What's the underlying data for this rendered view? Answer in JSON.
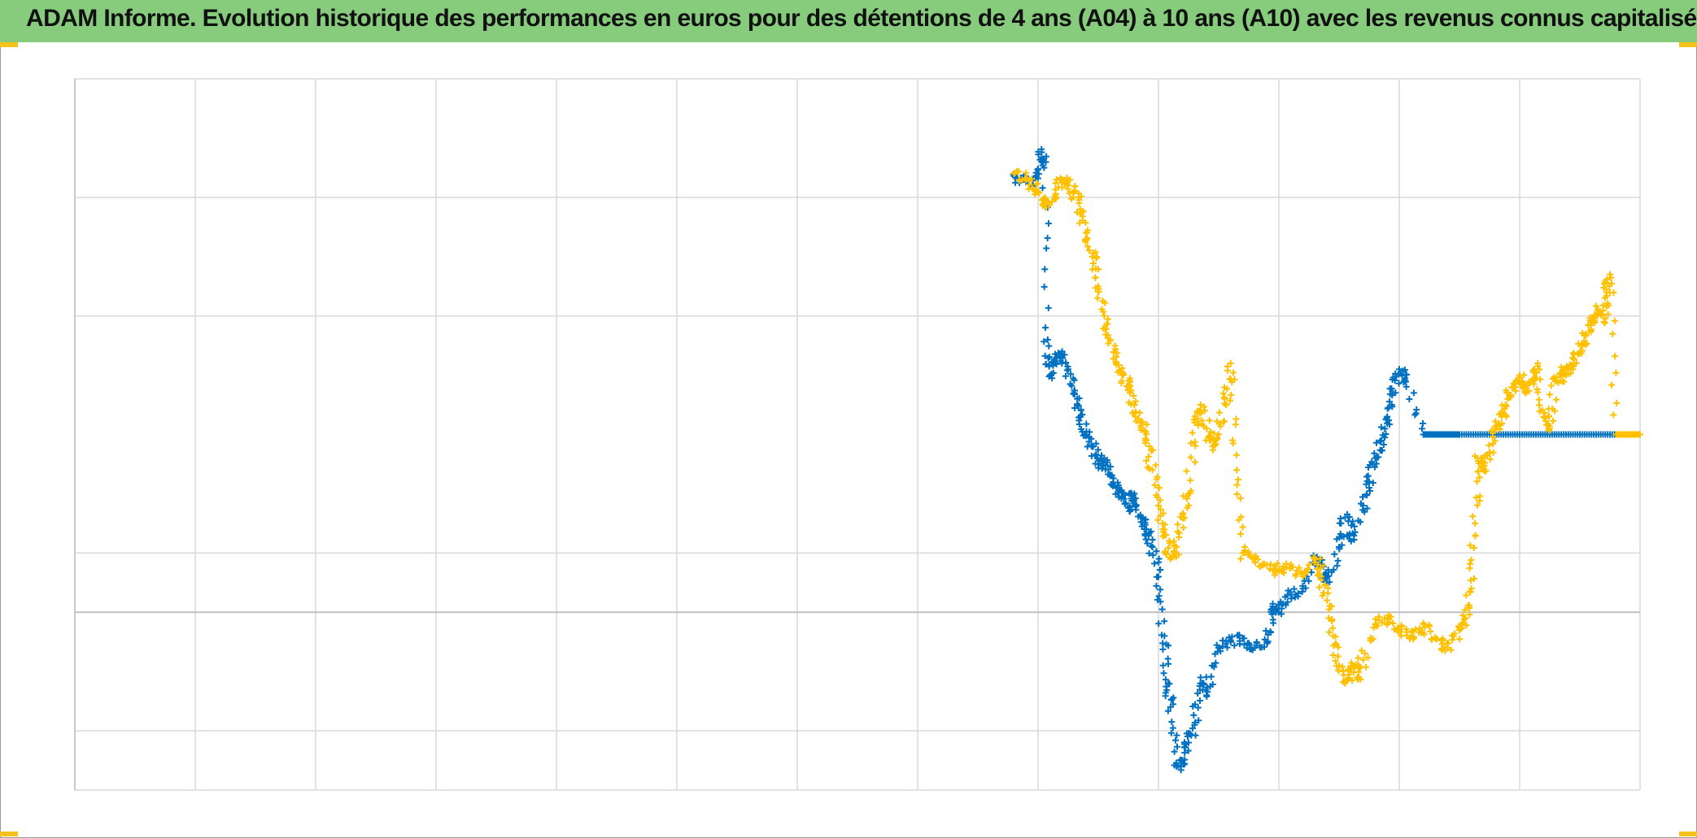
{
  "title": "ADAM Informe. Evolution historique des performances en euros pour des détentions de 4 ans (A04) à 10 ans (A10) avec les revenus connus capitalisés",
  "colors": {
    "header": "#86cc7c",
    "accent": "#f4c21a",
    "grid": "#d9d9d9",
    "zero_line": "#bfbfbf"
  },
  "chart_data": {
    "type": "scatter",
    "title": "ADAM Informe. Evolution historique des performances en euros pour des détentions de 4 ans (A04) à 10 ans (A10) avec les revenus connus capitalisés",
    "xlabel": "",
    "ylabel": "",
    "x_range": [
      0,
      13
    ],
    "y_range": [
      -1.5,
      4.5
    ],
    "x_ticks": [
      0,
      1,
      2,
      3,
      4,
      5,
      6,
      7,
      8,
      9,
      10,
      11,
      12,
      13
    ],
    "y_gridlines": [
      -1.5,
      -1.0,
      0,
      0.5,
      2.5,
      3.5,
      4.5
    ],
    "zero_line": 0,
    "tick_labels_shown": false,
    "legend": "none",
    "marker": "plus",
    "series": [
      {
        "color": "#0070c0",
        "points": [
          [
            7.8,
            3.68
          ],
          [
            7.9,
            3.63
          ],
          [
            8.0,
            3.66
          ],
          [
            8.03,
            3.88
          ],
          [
            8.05,
            3.75
          ],
          [
            8.08,
            2.3
          ],
          [
            8.1,
            2.0
          ],
          [
            8.15,
            2.1
          ],
          [
            8.2,
            2.2
          ],
          [
            8.25,
            2.05
          ],
          [
            8.3,
            1.85
          ],
          [
            8.35,
            1.65
          ],
          [
            8.4,
            1.5
          ],
          [
            8.45,
            1.4
          ],
          [
            8.5,
            1.25
          ],
          [
            8.55,
            1.3
          ],
          [
            8.6,
            1.15
          ],
          [
            8.65,
            1.05
          ],
          [
            8.7,
            0.98
          ],
          [
            8.75,
            0.88
          ],
          [
            8.8,
            1.0
          ],
          [
            8.85,
            0.82
          ],
          [
            8.9,
            0.7
          ],
          [
            8.95,
            0.55
          ],
          [
            9.0,
            0.3
          ],
          [
            9.05,
            -0.2
          ],
          [
            9.08,
            -0.6
          ],
          [
            9.1,
            -0.8
          ],
          [
            9.15,
            -1.3
          ],
          [
            9.2,
            -1.25
          ],
          [
            9.25,
            -1.1
          ],
          [
            9.3,
            -0.95
          ],
          [
            9.35,
            -0.55
          ],
          [
            9.4,
            -0.7
          ],
          [
            9.5,
            -0.3
          ],
          [
            9.6,
            -0.25
          ],
          [
            9.7,
            -0.22
          ],
          [
            9.8,
            -0.3
          ],
          [
            9.9,
            -0.25
          ],
          [
            9.95,
            0.05
          ],
          [
            10.0,
            0.0
          ],
          [
            10.1,
            0.15
          ],
          [
            10.2,
            0.2
          ],
          [
            10.3,
            0.45
          ],
          [
            10.35,
            0.4
          ],
          [
            10.4,
            0.25
          ],
          [
            10.5,
            0.55
          ],
          [
            10.55,
            0.8
          ],
          [
            10.6,
            0.6
          ],
          [
            10.7,
            0.9
          ],
          [
            10.75,
            1.1
          ],
          [
            10.8,
            1.3
          ],
          [
            10.85,
            1.45
          ],
          [
            10.9,
            1.65
          ],
          [
            10.95,
            1.85
          ],
          [
            11.0,
            2.05
          ],
          [
            11.05,
            1.95
          ],
          [
            11.2,
            1.5
          ],
          [
            11.5,
            1.5
          ],
          [
            12.0,
            1.5
          ],
          [
            12.5,
            1.5
          ],
          [
            13.0,
            1.5
          ]
        ]
      },
      {
        "color": "#ffc000",
        "points": [
          [
            7.8,
            3.7
          ],
          [
            7.9,
            3.65
          ],
          [
            8.0,
            3.55
          ],
          [
            8.05,
            3.45
          ],
          [
            8.15,
            3.5
          ],
          [
            8.2,
            3.65
          ],
          [
            8.25,
            3.6
          ],
          [
            8.3,
            3.55
          ],
          [
            8.35,
            3.4
          ],
          [
            8.4,
            3.2
          ],
          [
            8.45,
            3.0
          ],
          [
            8.5,
            2.75
          ],
          [
            8.55,
            2.5
          ],
          [
            8.6,
            2.3
          ],
          [
            8.65,
            2.1
          ],
          [
            8.7,
            2.0
          ],
          [
            8.75,
            1.9
          ],
          [
            8.8,
            1.75
          ],
          [
            8.85,
            1.6
          ],
          [
            8.9,
            1.45
          ],
          [
            8.95,
            1.2
          ],
          [
            9.0,
            0.9
          ],
          [
            9.05,
            0.65
          ],
          [
            9.1,
            0.45
          ],
          [
            9.15,
            0.55
          ],
          [
            9.2,
            0.8
          ],
          [
            9.25,
            1.0
          ],
          [
            9.3,
            1.6
          ],
          [
            9.35,
            1.75
          ],
          [
            9.4,
            1.55
          ],
          [
            9.45,
            1.4
          ],
          [
            9.5,
            1.5
          ],
          [
            9.55,
            1.8
          ],
          [
            9.6,
            2.1
          ],
          [
            9.65,
            1.2
          ],
          [
            9.7,
            0.5
          ],
          [
            9.8,
            0.45
          ],
          [
            9.9,
            0.4
          ],
          [
            10.0,
            0.35
          ],
          [
            10.1,
            0.38
          ],
          [
            10.2,
            0.3
          ],
          [
            10.3,
            0.45
          ],
          [
            10.35,
            0.3
          ],
          [
            10.4,
            0.1
          ],
          [
            10.45,
            -0.2
          ],
          [
            10.5,
            -0.45
          ],
          [
            10.55,
            -0.6
          ],
          [
            10.6,
            -0.45
          ],
          [
            10.65,
            -0.55
          ],
          [
            10.7,
            -0.4
          ],
          [
            10.8,
            -0.1
          ],
          [
            10.9,
            -0.05
          ],
          [
            11.0,
            -0.15
          ],
          [
            11.1,
            -0.2
          ],
          [
            11.2,
            -0.1
          ],
          [
            11.3,
            -0.22
          ],
          [
            11.4,
            -0.3
          ],
          [
            11.5,
            -0.15
          ],
          [
            11.55,
            -0.05
          ],
          [
            11.6,
            0.2
          ],
          [
            11.63,
            0.75
          ],
          [
            11.65,
            1.3
          ],
          [
            11.7,
            1.2
          ],
          [
            11.75,
            1.35
          ],
          [
            11.8,
            1.55
          ],
          [
            11.85,
            1.65
          ],
          [
            11.9,
            1.8
          ],
          [
            11.95,
            1.9
          ],
          [
            12.0,
            2.0
          ],
          [
            12.05,
            1.85
          ],
          [
            12.1,
            1.95
          ],
          [
            12.15,
            2.1
          ],
          [
            12.2,
            1.65
          ],
          [
            12.25,
            1.55
          ],
          [
            12.3,
            1.95
          ],
          [
            12.35,
            2.0
          ],
          [
            12.4,
            2.05
          ],
          [
            12.45,
            2.1
          ],
          [
            12.5,
            2.2
          ],
          [
            12.55,
            2.35
          ],
          [
            12.6,
            2.45
          ],
          [
            12.65,
            2.55
          ],
          [
            12.7,
            2.45
          ],
          [
            12.72,
            2.7
          ],
          [
            12.75,
            2.85
          ],
          [
            12.8,
            1.5
          ],
          [
            12.9,
            1.5
          ],
          [
            13.0,
            1.5
          ]
        ]
      }
    ]
  }
}
